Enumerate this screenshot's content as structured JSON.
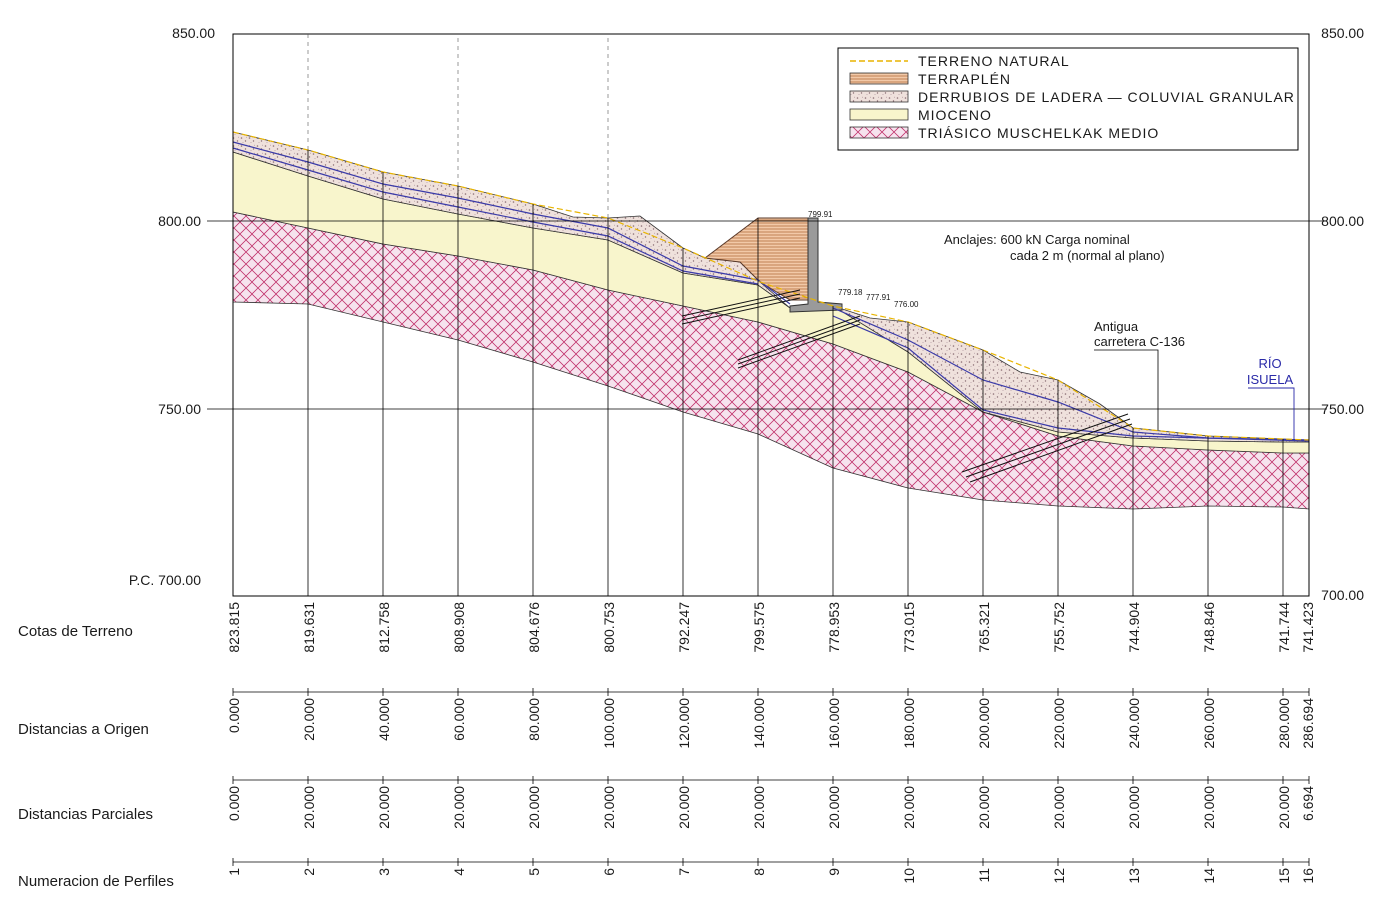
{
  "elevation_axis": {
    "left_labels": [
      "850.00",
      "800.00",
      "750.00",
      "P.C. 700.00"
    ],
    "right_labels": [
      "850.00",
      "800.00",
      "750.00",
      "700.00"
    ]
  },
  "legend": {
    "items": [
      {
        "key": "natural",
        "label": "TERRENO NATURAL"
      },
      {
        "key": "terraplen",
        "label": "TERRAPLÉN"
      },
      {
        "key": "derrubios",
        "label": "DERRUBIOS DE LADERA — COLUVIAL GRANULAR"
      },
      {
        "key": "mioceno",
        "label": "MIOCENO"
      },
      {
        "key": "triasico",
        "label": "TRIÁSICO MUSCHELKAK MEDIO"
      }
    ]
  },
  "annotations": {
    "anchors_line1": "Anclajes: 600 kN Carga nominal",
    "anchors_line2": "cada 2 m (normal al plano)",
    "road_line1": "Antigua",
    "road_line2": "carretera C-136",
    "river_line1": "RÍO",
    "river_line2": "ISUELA",
    "elev_marks": [
      "799.91",
      "779.18",
      "777.91",
      "776.00"
    ]
  },
  "table": {
    "row_labels": {
      "cotas": "Cotas de Terreno",
      "origen": "Distancias a Origen",
      "parciales": "Distancias Parciales",
      "perfiles": "Numeracion de Perfiles"
    },
    "cotas": [
      "823.815",
      "819.631",
      "812.758",
      "808.908",
      "804.676",
      "800.753",
      "792.247",
      "799.575",
      "778.953",
      "773.015",
      "765.321",
      "755.752",
      "744.904",
      "748.846",
      "741.744",
      "741.423"
    ],
    "origen": [
      "0.000",
      "20.000",
      "40.000",
      "60.000",
      "80.000",
      "100.000",
      "120.000",
      "140.000",
      "160.000",
      "180.000",
      "200.000",
      "220.000",
      "240.000",
      "260.000",
      "280.000",
      "286.694"
    ],
    "parciales": [
      "0.000",
      "20.000",
      "20.000",
      "20.000",
      "20.000",
      "20.000",
      "20.000",
      "20.000",
      "20.000",
      "20.000",
      "20.000",
      "20.000",
      "20.000",
      "20.000",
      "20.000",
      "6.694"
    ],
    "perfiles": [
      "1",
      "2",
      "3",
      "4",
      "5",
      "6",
      "7",
      "8",
      "9",
      "10",
      "11",
      "12",
      "13",
      "14",
      "15",
      "16"
    ]
  },
  "colors": {
    "triasico_fill": "#f6e3ee",
    "triasico_hatch": "#c0306a",
    "mioceno_fill": "#f8f5cc",
    "derrubios_fill": "#efe1dc",
    "derrubios_dots": "#8a6d73",
    "terraplen_fill": "#f2c9a8",
    "terraplen_hatch": "#b06a3a",
    "natural_line": "#e8b400",
    "contact_line": "#3a3aa8",
    "grid": "#000000"
  }
}
